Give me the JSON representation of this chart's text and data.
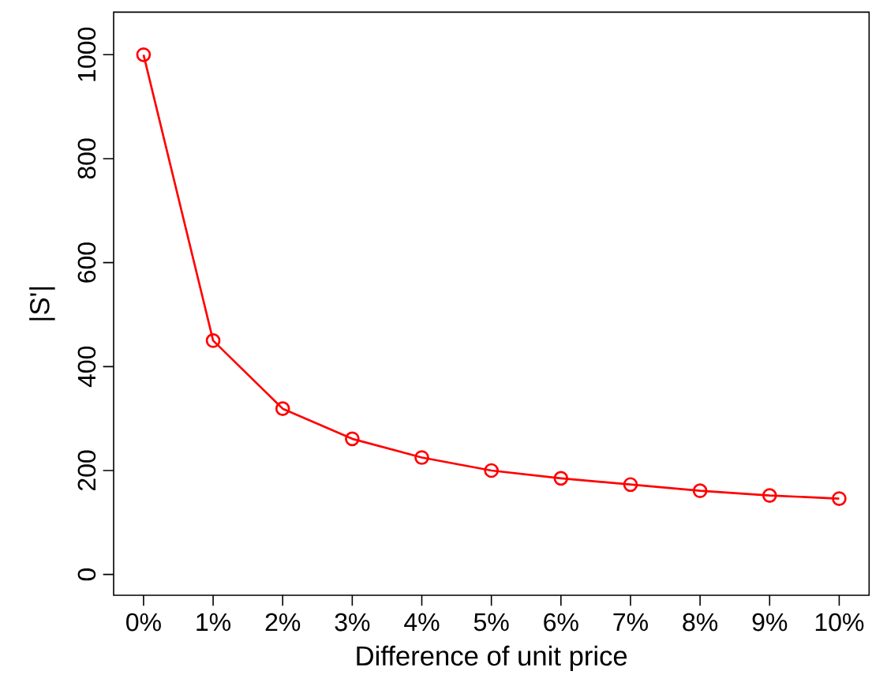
{
  "chart_data": {
    "type": "line",
    "xlabel": "Difference of unit price",
    "ylabel": "|S'|",
    "categories": [
      "0%",
      "1%",
      "2%",
      "3%",
      "4%",
      "5%",
      "6%",
      "7%",
      "8%",
      "9%",
      "10%"
    ],
    "series": [
      {
        "color": "#ff0000",
        "values": [
          1000,
          450,
          319,
          261,
          225,
          200,
          185,
          173,
          161,
          152,
          146
        ]
      }
    ],
    "ylim": [
      -40,
      1082
    ],
    "yticks": [
      0,
      200,
      400,
      600,
      800,
      1000
    ],
    "marker": "circle",
    "line_style": "solid",
    "grid": false
  }
}
